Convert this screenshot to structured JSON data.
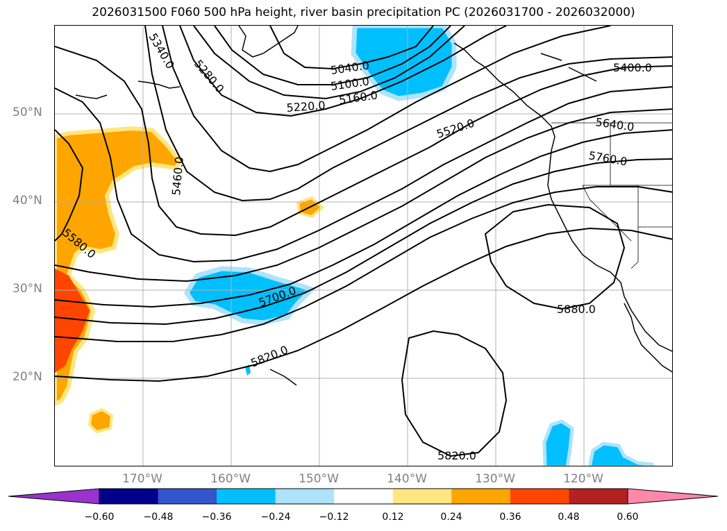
{
  "map": {
    "title": "2026031500 F060 500 hPa height, river basin precipitation PC (2026031700 - 2026032000)",
    "lat_labels": [
      "50°N",
      "40°N",
      "30°N",
      "20°N"
    ],
    "lon_labels": [
      "170°W",
      "160°W",
      "150°W",
      "140°W",
      "130°W",
      "120°W"
    ],
    "contour_labels": [
      "5040.0",
      "5100.0",
      "5160.0",
      "5220.0",
      "5340.0",
      "5280.0",
      "5400.0",
      "5460.0",
      "5520.0",
      "5580.0",
      "5640.0",
      "5700.0",
      "5760.0",
      "5820.0",
      "5880.0",
      "5820.0"
    ],
    "colorbar": {
      "ticks": [
        "−0.60",
        "−0.48",
        "−0.36",
        "−0.24",
        "−0.12",
        "0.12",
        "0.24",
        "0.36",
        "0.48",
        "0.60"
      ],
      "colors": [
        "#9933cc",
        "#00008b",
        "#3355cc",
        "#00bfff",
        "#aee3fb",
        "#ffffff",
        "#ffe680",
        "#ffa500",
        "#ff4500",
        "#b22222",
        "#ff88aa"
      ]
    }
  }
}
